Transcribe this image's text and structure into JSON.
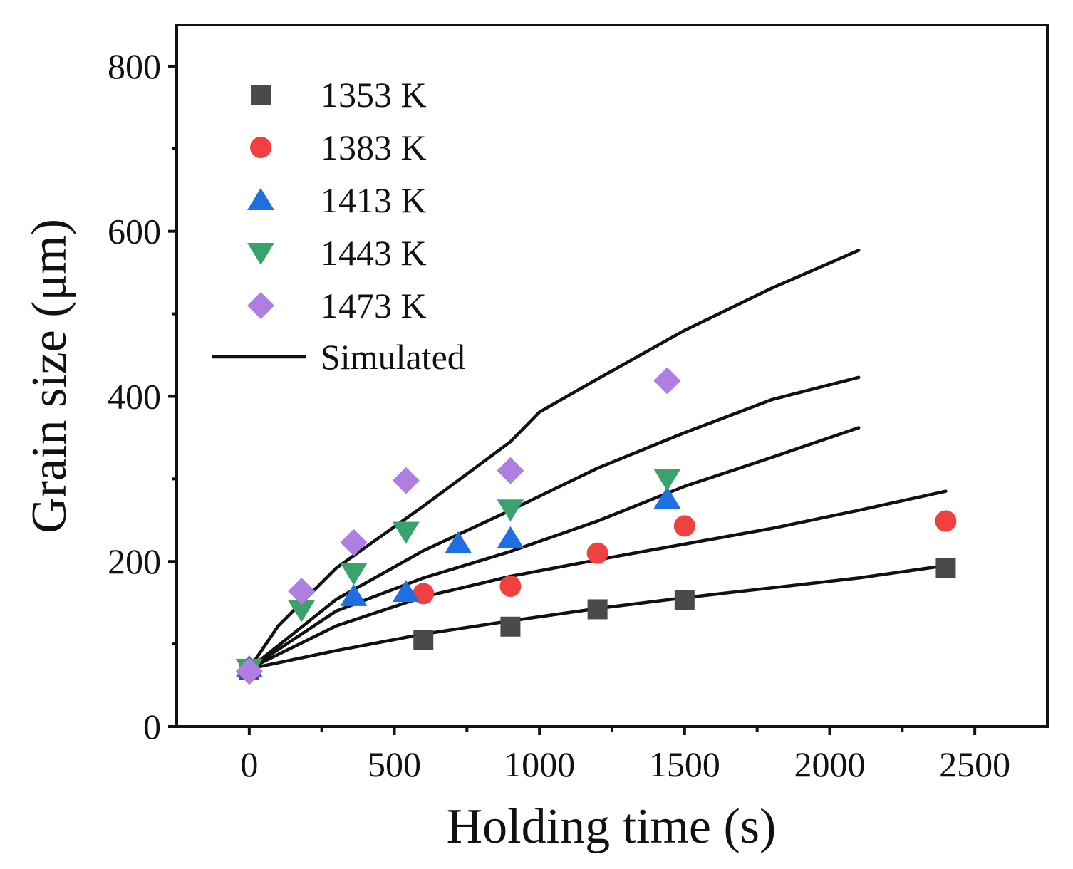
{
  "chart_data": {
    "type": "scatter",
    "title": "",
    "xlabel": "Holding time (s)",
    "ylabel": "Grain size (μm)",
    "xlim": [
      -250,
      2750
    ],
    "ylim": [
      0,
      850
    ],
    "x_ticks": [
      0,
      500,
      1000,
      1500,
      2000,
      2500
    ],
    "x_tick_labels": [
      "0",
      "500",
      "1000",
      "1500",
      "2000",
      "2500"
    ],
    "y_ticks": [
      0,
      200,
      400,
      600,
      800
    ],
    "y_tick_labels": [
      "0",
      "200",
      "400",
      "600",
      "800"
    ],
    "legend_position": "top-left",
    "series": [
      {
        "name": "1353 K",
        "marker": "square",
        "color": "#4a4a4a",
        "points": [
          [
            0,
            69
          ],
          [
            600,
            105
          ],
          [
            900,
            121
          ],
          [
            1200,
            142
          ],
          [
            1500,
            153
          ],
          [
            2400,
            192
          ]
        ]
      },
      {
        "name": "1383 K",
        "marker": "circle",
        "color": "#f04040",
        "points": [
          [
            0,
            70
          ],
          [
            600,
            161
          ],
          [
            900,
            170
          ],
          [
            1200,
            210
          ],
          [
            1500,
            243
          ],
          [
            2400,
            249
          ]
        ]
      },
      {
        "name": "1413 K",
        "marker": "triangle-up",
        "color": "#1f6fe0",
        "points": [
          [
            0,
            72
          ],
          [
            360,
            158
          ],
          [
            540,
            163
          ],
          [
            720,
            222
          ],
          [
            900,
            228
          ],
          [
            1440,
            276
          ]
        ]
      },
      {
        "name": "1443 K",
        "marker": "triangle-down",
        "color": "#3aa36b",
        "points": [
          [
            0,
            70
          ],
          [
            180,
            141
          ],
          [
            360,
            186
          ],
          [
            540,
            236
          ],
          [
            900,
            263
          ],
          [
            1440,
            300
          ]
        ]
      },
      {
        "name": "1473 K",
        "marker": "diamond",
        "color": "#b07ee0",
        "points": [
          [
            0,
            67
          ],
          [
            180,
            164
          ],
          [
            360,
            223
          ],
          [
            540,
            298
          ],
          [
            900,
            310
          ],
          [
            1440,
            419
          ]
        ]
      }
    ],
    "simulated": {
      "name": "Simulated",
      "color": "#111111",
      "curves": [
        [
          [
            0,
            70
          ],
          [
            300,
            92
          ],
          [
            600,
            112
          ],
          [
            900,
            128
          ],
          [
            1200,
            143
          ],
          [
            1500,
            156
          ],
          [
            1800,
            168
          ],
          [
            2100,
            180
          ],
          [
            2400,
            195
          ]
        ],
        [
          [
            0,
            70
          ],
          [
            300,
            122
          ],
          [
            600,
            157
          ],
          [
            900,
            182
          ],
          [
            1200,
            202
          ],
          [
            1500,
            221
          ],
          [
            1800,
            240
          ],
          [
            2100,
            262
          ],
          [
            2400,
            285
          ]
        ],
        [
          [
            0,
            70
          ],
          [
            300,
            140
          ],
          [
            600,
            180
          ],
          [
            900,
            212
          ],
          [
            1200,
            249
          ],
          [
            1500,
            291
          ],
          [
            1800,
            326
          ],
          [
            2100,
            362
          ]
        ],
        [
          [
            0,
            70
          ],
          [
            300,
            154
          ],
          [
            600,
            213
          ],
          [
            900,
            262
          ],
          [
            1200,
            313
          ],
          [
            1500,
            356
          ],
          [
            1800,
            396
          ],
          [
            2100,
            423
          ]
        ],
        [
          [
            0,
            70
          ],
          [
            100,
            122
          ],
          [
            300,
            192
          ],
          [
            600,
            267
          ],
          [
            900,
            345
          ],
          [
            1000,
            381
          ],
          [
            1200,
            421
          ],
          [
            1500,
            480
          ],
          [
            1800,
            531
          ],
          [
            2100,
            577
          ]
        ]
      ]
    }
  }
}
